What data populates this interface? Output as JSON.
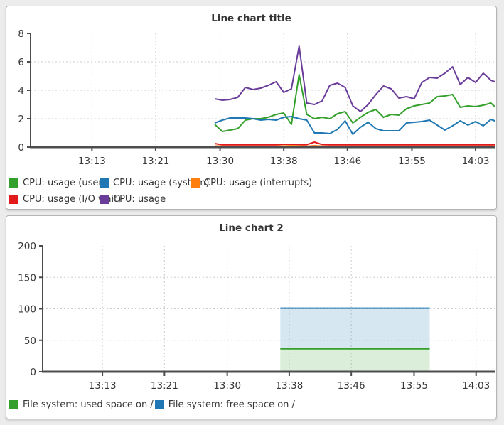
{
  "page": {
    "background_color": "#ececec",
    "panel_color": "#ffffff",
    "axis_color": "#4d4d4f",
    "grid_color": "#cccccc",
    "text_color": "#363636"
  },
  "chart_data": [
    {
      "type": "line",
      "title": "Line chart title",
      "xlabel": "",
      "ylabel": "",
      "x_range": [
        5,
        65.5
      ],
      "y_range": [
        0,
        8
      ],
      "grid": true,
      "legend_position": "bottom",
      "x_ticks": [
        {
          "v": 13,
          "label": "13:13"
        },
        {
          "v": 21.3,
          "label": "13:21"
        },
        {
          "v": 29.7,
          "label": "13:30"
        },
        {
          "v": 38,
          "label": "13:38"
        },
        {
          "v": 46.3,
          "label": "13:46"
        },
        {
          "v": 54.7,
          "label": "13:55"
        },
        {
          "v": 63,
          "label": "14:03"
        }
      ],
      "y_ticks": [
        {
          "v": 0,
          "label": "0"
        },
        {
          "v": 2,
          "label": "2"
        },
        {
          "v": 4,
          "label": "4"
        },
        {
          "v": 6,
          "label": "6"
        },
        {
          "v": 8,
          "label": "8"
        }
      ],
      "x_unit": "minutes after 13:00",
      "series": [
        {
          "name": "CPU: usage (user)",
          "color": "#33a02c",
          "x_start": 29,
          "x_step": 1,
          "values": [
            1.6,
            1.1,
            1.2,
            1.3,
            1.9,
            2.0,
            2.0,
            2.1,
            2.3,
            2.4,
            1.6,
            5.1,
            2.3,
            2.0,
            2.1,
            2.0,
            2.35,
            2.5,
            1.7,
            2.1,
            2.45,
            2.65,
            2.1,
            2.3,
            2.25,
            2.7,
            2.9,
            3.0,
            3.1,
            3.55,
            3.6,
            3.7,
            2.8,
            2.9,
            2.85,
            2.95,
            3.1,
            2.6
          ]
        },
        {
          "name": "CPU: usage (system)",
          "color": "#1f78b4",
          "x_start": 29,
          "x_step": 1,
          "values": [
            1.7,
            1.9,
            2.05,
            2.05,
            2.05,
            2.0,
            1.9,
            1.95,
            1.9,
            2.1,
            2.15,
            2.0,
            1.9,
            1.0,
            1.0,
            0.95,
            1.25,
            1.85,
            0.9,
            1.4,
            1.75,
            1.3,
            1.15,
            1.15,
            1.15,
            1.7,
            1.75,
            1.8,
            1.9,
            1.55,
            1.2,
            1.5,
            1.85,
            1.55,
            1.8,
            1.5,
            1.95,
            1.75
          ]
        },
        {
          "name": "CPU: usage (interrupts)",
          "color": "#ff7f0e",
          "x_start": 29,
          "x_step": 1,
          "values": [
            0.08,
            0.06,
            0.06,
            0.06,
            0.06,
            0.06,
            0.06,
            0.06,
            0.06,
            0.08,
            0.1,
            0.08,
            0.06,
            0.1,
            0.06,
            0.06,
            0.06,
            0.06,
            0.06,
            0.06,
            0.06,
            0.06,
            0.06,
            0.06,
            0.06,
            0.06,
            0.06,
            0.06,
            0.06,
            0.06,
            0.06,
            0.06,
            0.06,
            0.06,
            0.06,
            0.06,
            0.06,
            0.06
          ]
        },
        {
          "name": "CPU: usage (I/O wait)",
          "color": "#e31a1c",
          "x_start": 29,
          "x_step": 1,
          "values": [
            0.25,
            0.16,
            0.16,
            0.16,
            0.16,
            0.16,
            0.16,
            0.16,
            0.16,
            0.2,
            0.2,
            0.18,
            0.17,
            0.35,
            0.18,
            0.16,
            0.16,
            0.16,
            0.16,
            0.16,
            0.16,
            0.16,
            0.16,
            0.16,
            0.16,
            0.16,
            0.16,
            0.16,
            0.16,
            0.16,
            0.16,
            0.16,
            0.16,
            0.16,
            0.16,
            0.16,
            0.16,
            0.16
          ]
        },
        {
          "name": "CPU: usage",
          "color": "#6a3d9a",
          "x_start": 29,
          "x_step": 1,
          "values": [
            3.4,
            3.3,
            3.35,
            3.5,
            4.2,
            4.05,
            4.15,
            4.35,
            4.6,
            3.85,
            4.1,
            7.1,
            3.1,
            3.0,
            3.25,
            4.35,
            4.5,
            4.2,
            2.9,
            2.5,
            3.0,
            3.7,
            4.3,
            4.1,
            3.45,
            3.55,
            3.4,
            4.55,
            4.9,
            4.85,
            5.2,
            5.65,
            4.4,
            4.9,
            4.55,
            5.2,
            4.7,
            4.5
          ]
        }
      ]
    },
    {
      "type": "area",
      "title": "Line chart 2",
      "xlabel": "",
      "ylabel": "",
      "x_range": [
        5,
        65.5
      ],
      "y_range": [
        0,
        200
      ],
      "grid": true,
      "legend_position": "bottom",
      "x_ticks": [
        {
          "v": 13,
          "label": "13:13"
        },
        {
          "v": 21.3,
          "label": "13:21"
        },
        {
          "v": 29.7,
          "label": "13:30"
        },
        {
          "v": 38,
          "label": "13:38"
        },
        {
          "v": 46.3,
          "label": "13:46"
        },
        {
          "v": 54.7,
          "label": "13:55"
        },
        {
          "v": 63,
          "label": "14:03"
        }
      ],
      "y_ticks": [
        {
          "v": 0,
          "label": "0"
        },
        {
          "v": 50,
          "label": "50"
        },
        {
          "v": 100,
          "label": "100"
        },
        {
          "v": 150,
          "label": "150"
        },
        {
          "v": 200,
          "label": "200"
        }
      ],
      "x_unit": "minutes after 13:00",
      "series": [
        {
          "name": "File system: used space on /",
          "color": "#33a02c",
          "fill_to": 0,
          "fill_opacity": 0.18,
          "points": [
            [
              36.8,
              36.5
            ],
            [
              56.8,
              36.5
            ]
          ]
        },
        {
          "name": "File system: free space on /",
          "color": "#1f78b4",
          "fill_to": 36.5,
          "fill_opacity": 0.18,
          "points": [
            [
              36.8,
              101
            ],
            [
              56.8,
              101
            ]
          ]
        }
      ]
    }
  ]
}
